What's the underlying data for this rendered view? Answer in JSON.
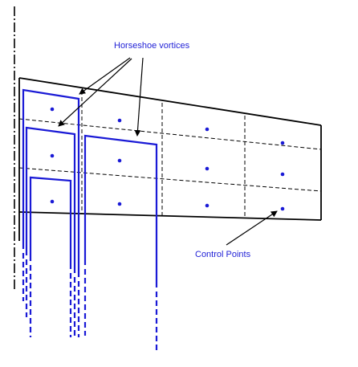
{
  "labels": {
    "horseshoe_vortices": "Horseshoe vortices",
    "control_points": "Control Points"
  },
  "colors": {
    "label_text": "#1f1fd6",
    "vortex": "#1a1ad6",
    "control_point": "#1a1ad6",
    "wing_outline": "#000000",
    "panel_grid": "#000000",
    "centerline": "#000000",
    "arrows": "#000000",
    "background": "#ffffff"
  }
}
